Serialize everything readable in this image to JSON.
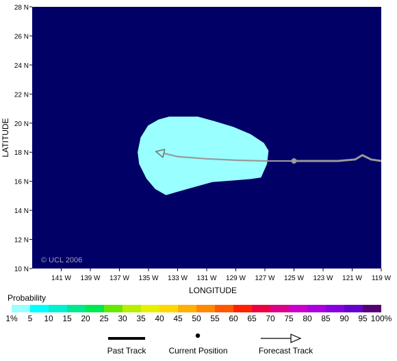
{
  "map": {
    "lat_ticks": [
      "28 N",
      "26 N",
      "24 N",
      "22 N",
      "20 N",
      "18 N",
      "16 N",
      "14 N",
      "12 N",
      "10 N"
    ],
    "lon_ticks": [
      "141 W",
      "139 W",
      "137 W",
      "135 W",
      "133 W",
      "131 W",
      "129 W",
      "127 W",
      "125 W",
      "123 W",
      "121 W",
      "119 W"
    ],
    "y_axis_title": "LATITUDE",
    "x_axis_title": "LONGITUDE",
    "copyright": "© UCL 2006",
    "ocean_color": "#000066",
    "probability_color": "#99ffff",
    "track_color": "#999999"
  },
  "chart_data": {
    "type": "map",
    "xlim": [
      -143,
      -119
    ],
    "ylim": [
      10,
      28
    ],
    "past_track": [
      [
        -119,
        17.4
      ],
      [
        -119.7,
        17.5
      ],
      [
        -120.3,
        17.8
      ],
      [
        -120.8,
        17.5
      ],
      [
        -122,
        17.4
      ],
      [
        -125,
        17.4
      ]
    ],
    "current_position": [
      -125,
      17.4
    ],
    "forecast_track": [
      [
        -125,
        17.4
      ],
      [
        -127,
        17.4
      ],
      [
        -129,
        17.45
      ],
      [
        -131,
        17.55
      ],
      [
        -133,
        17.7
      ],
      [
        -134.5,
        18.05
      ]
    ],
    "probability_region_1pct": [
      [
        -133.6,
        20.4
      ],
      [
        -131.6,
        20.4
      ],
      [
        -130.5,
        20.1
      ],
      [
        -129.2,
        19.7
      ],
      [
        -128,
        19.2
      ],
      [
        -127.1,
        18.6
      ],
      [
        -126.8,
        18.1
      ],
      [
        -126.9,
        17.2
      ],
      [
        -127.3,
        16.3
      ],
      [
        -128,
        16.2
      ],
      [
        -129.2,
        16.1
      ],
      [
        -130.6,
        16.0
      ],
      [
        -132.4,
        15.5
      ],
      [
        -133.8,
        15.1
      ],
      [
        -134.5,
        15.5
      ],
      [
        -135.1,
        16.2
      ],
      [
        -135.6,
        17.2
      ],
      [
        -135.7,
        18.0
      ],
      [
        -135.5,
        19.0
      ],
      [
        -135.0,
        19.8
      ],
      [
        -134.3,
        20.2
      ]
    ]
  },
  "legend": {
    "title": "Probability",
    "scale_labels": [
      "1%",
      "5",
      "10",
      "15",
      "20",
      "25",
      "30",
      "35",
      "40",
      "45",
      "50",
      "55",
      "60",
      "65",
      "70",
      "75",
      "80",
      "85",
      "90",
      "95",
      "100%"
    ],
    "scale_colors": [
      "#99ffff",
      "#00ffff",
      "#00f0d0",
      "#00e890",
      "#00e850",
      "#66e800",
      "#b8ee00",
      "#e8f000",
      "#ffd800",
      "#ffb000",
      "#ff8800",
      "#ff5800",
      "#ff2000",
      "#ee0040",
      "#dd0088",
      "#cc00cc",
      "#aa00dd",
      "#8800dd",
      "#6600cc",
      "#550077"
    ],
    "keys": {
      "past_track": "Past Track",
      "current_position": "Current Position",
      "forecast_track": "Forecast Track"
    }
  }
}
